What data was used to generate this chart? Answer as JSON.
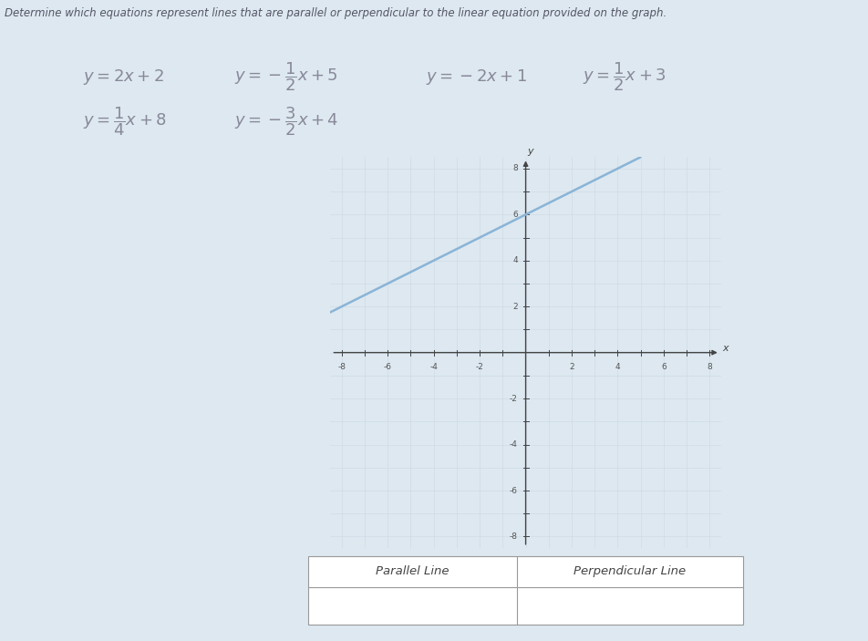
{
  "title": "Determine which equations represent lines that are parallel or perpendicular to the linear equation provided on the graph.",
  "eq1_row": [
    [
      0.095,
      "$y = 2x + 2$"
    ],
    [
      0.27,
      "$y = -\\dfrac{1}{2}x + 5$"
    ],
    [
      0.49,
      "$y = -2x + 1$"
    ],
    [
      0.67,
      "$y = \\dfrac{1}{2}x + 3$"
    ]
  ],
  "eq2_row": [
    [
      0.095,
      "$y = \\dfrac{1}{4}x + 8$"
    ],
    [
      0.27,
      "$y = -\\dfrac{3}{2}x + 4$"
    ]
  ],
  "graph_line_slope": 0.5,
  "graph_line_intercept": 6,
  "xmin": -8,
  "xmax": 8,
  "ymin": -8,
  "ymax": 8,
  "line_color": "#8ab4d6",
  "grid_color": "#b8c8d8",
  "grid_minor_color": "#ccd8e4",
  "axis_color": "#444444",
  "bg_color": "#d8e4ee",
  "outer_bg": "#dde8f0",
  "tick_labels_color": "#555555",
  "table_header_parallel": "Parallel Line",
  "table_header_perpendicular": "Perpendicular Line",
  "tick_step": 2,
  "line_width": 1.8,
  "eq_fontsize": 13,
  "eq_color": "#888899",
  "title_color": "#555566",
  "title_fontsize": 8.5
}
